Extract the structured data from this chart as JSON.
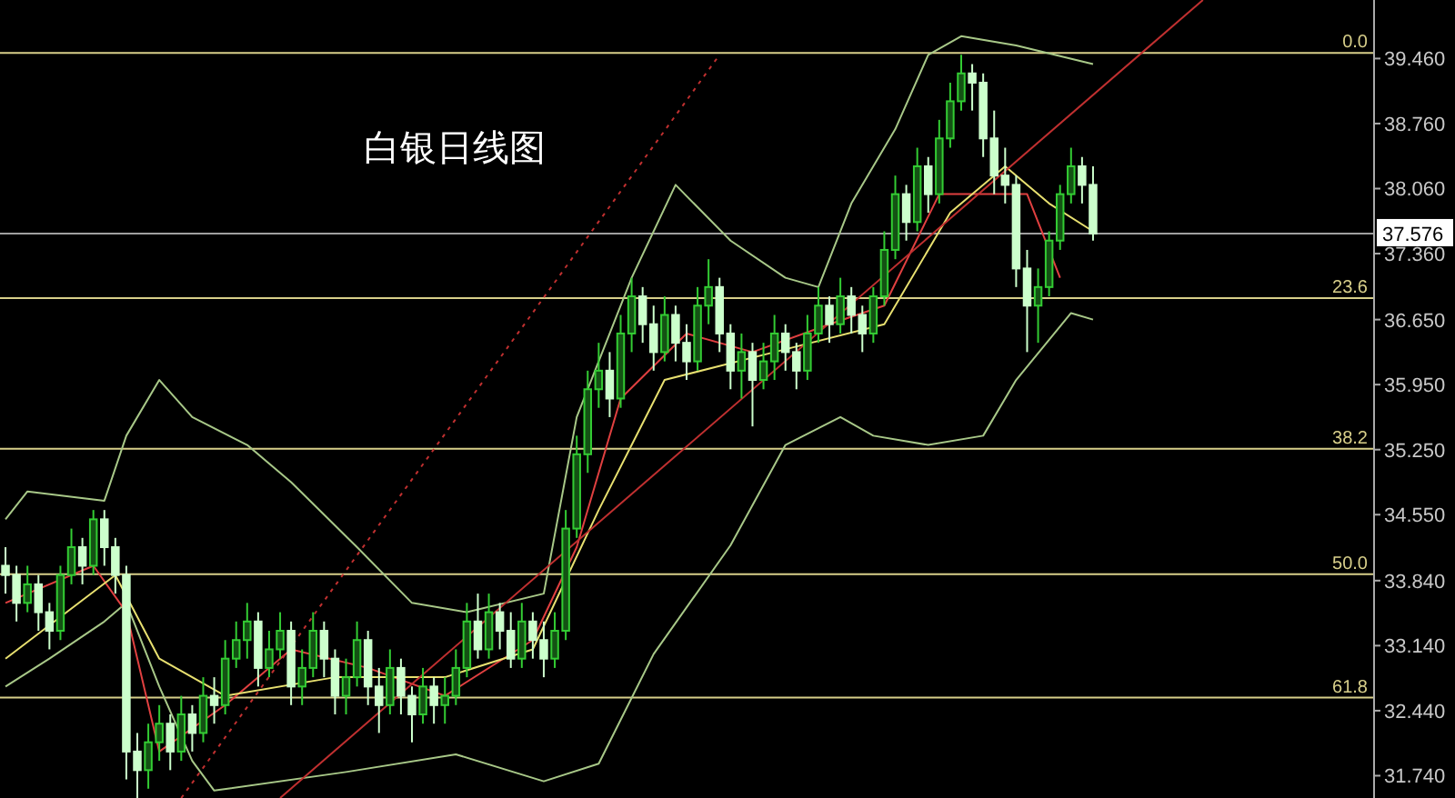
{
  "chart_data": {
    "type": "candlestick",
    "title": "白银日线图",
    "ylim": [
      31.5,
      40.09
    ],
    "tick_labels": "y",
    "grid": false,
    "categories": [
      null,
      null,
      null,
      null,
      null,
      null,
      null,
      null,
      null,
      null,
      null,
      null,
      null,
      null,
      null,
      null,
      null,
      null,
      null,
      null,
      null,
      null,
      null,
      null,
      null,
      null,
      null,
      null,
      null,
      null,
      null,
      null,
      null,
      null,
      null,
      null,
      null,
      null,
      null,
      null,
      null,
      null,
      null,
      null,
      null,
      null,
      null,
      null,
      null,
      null,
      null,
      null,
      null,
      null,
      null,
      null,
      null,
      null,
      null,
      null,
      null,
      null,
      null,
      null,
      null,
      null,
      null,
      null,
      null,
      null,
      null,
      null,
      null,
      null,
      null,
      null,
      null,
      null,
      null,
      null,
      null,
      null,
      null,
      null,
      null,
      null,
      null,
      null,
      null,
      null,
      null,
      null,
      null,
      null,
      null,
      null,
      null,
      null,
      null,
      null,
      null,
      null,
      null,
      null,
      null,
      null,
      null,
      null,
      null,
      null,
      null,
      null,
      null,
      null,
      null,
      null,
      null,
      null,
      null,
      null,
      null,
      null,
      null,
      null,
      null
    ],
    "annotations": [
      {
        "text": "0.0",
        "y": 39.52
      },
      {
        "text": "23.6",
        "y": 36.88
      },
      {
        "text": "38.2",
        "y": 35.26
      },
      {
        "text": "50.0",
        "y": 33.91
      },
      {
        "text": "61.8",
        "y": 32.58
      }
    ],
    "yticks": [
      {
        "value": 39.46,
        "label": "39.460"
      },
      {
        "value": 38.76,
        "label": "38.760"
      },
      {
        "value": 38.06,
        "label": "38.060"
      },
      {
        "value": 37.36,
        "label": "37.360"
      },
      {
        "value": 36.65,
        "label": "36.650"
      },
      {
        "value": 35.95,
        "label": "35.950"
      },
      {
        "value": 35.25,
        "label": "35.250"
      },
      {
        "value": 34.55,
        "label": "34.550"
      },
      {
        "value": 33.84,
        "label": "33.840"
      },
      {
        "value": 33.14,
        "label": "33.140"
      },
      {
        "value": 32.44,
        "label": "32.440"
      },
      {
        "value": 31.74,
        "label": "31.740"
      }
    ],
    "ref_lines": [
      {
        "axis": "y",
        "value": 39.52,
        "color": "#d8cf8a"
      },
      {
        "axis": "y",
        "value": 36.88,
        "color": "#d8cf8a"
      },
      {
        "axis": "y",
        "value": 35.26,
        "color": "#d8cf8a"
      },
      {
        "axis": "y",
        "value": 33.91,
        "color": "#d8cf8a"
      },
      {
        "axis": "y",
        "value": 32.58,
        "color": "#d8cf8a"
      },
      {
        "axis": "y",
        "value": 37.576,
        "label": "37.576",
        "color": "#a0a0a0"
      }
    ],
    "series": [
      {
        "type": "line",
        "color": "#a8c888",
        "values": [
          34.5,
          null,
          34.8,
          null,
          null,
          null,
          null,
          null,
          null,
          34.7,
          null,
          35.4,
          null,
          null,
          36.0,
          null,
          null,
          35.6,
          null,
          null,
          null,
          null,
          35.3,
          null,
          null,
          null,
          34.9,
          null,
          null,
          null,
          null,
          null,
          34.2,
          null,
          null,
          null,
          null,
          33.6,
          null,
          null,
          null,
          null,
          33.5,
          null,
          null,
          null,
          null,
          null,
          null,
          33.7,
          null,
          null,
          35.6,
          null,
          null,
          null,
          null,
          37.1,
          null,
          null,
          null,
          38.1,
          null,
          null,
          null,
          null,
          37.5,
          null,
          null,
          null,
          null,
          37.1,
          null,
          null,
          37.0,
          null,
          null,
          37.9,
          null,
          null,
          null,
          38.7,
          null,
          null,
          39.5,
          null,
          null,
          39.7,
          null,
          null,
          null,
          null,
          39.6,
          null,
          null,
          null,
          null,
          null,
          null,
          39.4,
          null,
          null,
          null,
          null,
          null,
          null,
          null,
          null,
          null,
          null,
          null,
          null,
          null,
          null,
          null,
          null,
          null,
          null,
          null,
          null,
          null,
          null,
          null,
          null,
          null
        ]
      },
      {
        "type": "line",
        "color": "#a8c888",
        "values": [
          32.7,
          null,
          null,
          null,
          33.0,
          null,
          null,
          null,
          null,
          33.4,
          null,
          33.6,
          null,
          null,
          32.7,
          null,
          null,
          31.9,
          null,
          31.58,
          null,
          null,
          null,
          null,
          null,
          null,
          null,
          null,
          null,
          null,
          null,
          31.78,
          null,
          null,
          null,
          null,
          null,
          null,
          null,
          null,
          null,
          31.97,
          null,
          null,
          null,
          null,
          null,
          null,
          null,
          31.68,
          null,
          null,
          null,
          null,
          31.87,
          null,
          null,
          null,
          null,
          33.05,
          null,
          null,
          null,
          null,
          null,
          null,
          34.22,
          null,
          null,
          null,
          null,
          35.3,
          null,
          null,
          null,
          null,
          35.6,
          null,
          null,
          35.4,
          null,
          null,
          null,
          null,
          35.3,
          null,
          null,
          null,
          null,
          35.4,
          null,
          null,
          36.0,
          null,
          null,
          null,
          null,
          36.72,
          null,
          36.65,
          null,
          null,
          null,
          null,
          null,
          null,
          null,
          null,
          null,
          null,
          null,
          null,
          null,
          null,
          null,
          null,
          null,
          null,
          null,
          null,
          null,
          null,
          null,
          null,
          null
        ]
      },
      {
        "type": "line",
        "color": "#e04040",
        "values": [
          33.6,
          null,
          null,
          null,
          null,
          null,
          null,
          null,
          34.0,
          null,
          null,
          33.5,
          null,
          null,
          32.0,
          null,
          null,
          null,
          null,
          null,
          32.5,
          null,
          null,
          null,
          null,
          null,
          33.1,
          null,
          null,
          null,
          null,
          null,
          null,
          32.9,
          null,
          null,
          null,
          null,
          null,
          null,
          32.6,
          null,
          null,
          null,
          null,
          null,
          null,
          null,
          33.2,
          null,
          null,
          null,
          34.2,
          null,
          null,
          null,
          35.8,
          null,
          null,
          null,
          null,
          null,
          36.5,
          null,
          null,
          null,
          null,
          null,
          36.3,
          null,
          null,
          null,
          null,
          null,
          null,
          36.6,
          null,
          null,
          null,
          null,
          36.8,
          null,
          null,
          null,
          null,
          38.0,
          null,
          null,
          null,
          null,
          null,
          null,
          null,
          38.0,
          null,
          null,
          37.1,
          null,
          null,
          null,
          null,
          null,
          null,
          null,
          null,
          null,
          null,
          null,
          null,
          null,
          null,
          null,
          null,
          null,
          null,
          null,
          null,
          null,
          null,
          null,
          null,
          null,
          null,
          null,
          null
        ]
      },
      {
        "type": "line",
        "color": "#e8e070",
        "values": [
          33.0,
          null,
          null,
          null,
          null,
          null,
          null,
          null,
          null,
          null,
          33.9,
          null,
          null,
          null,
          33.0,
          null,
          null,
          null,
          null,
          null,
          32.6,
          null,
          null,
          null,
          null,
          null,
          null,
          null,
          null,
          null,
          32.8,
          null,
          null,
          null,
          null,
          null,
          null,
          null,
          null,
          null,
          32.8,
          null,
          null,
          null,
          null,
          null,
          null,
          null,
          33.1,
          null,
          null,
          null,
          null,
          null,
          34.6,
          null,
          null,
          null,
          null,
          null,
          36.0,
          null,
          null,
          null,
          null,
          null,
          null,
          null,
          null,
          null,
          36.3,
          null,
          null,
          null,
          null,
          null,
          null,
          null,
          null,
          null,
          36.6,
          null,
          null,
          null,
          null,
          null,
          37.8,
          null,
          null,
          null,
          null,
          38.3,
          null,
          null,
          null,
          37.9,
          null,
          null,
          null,
          37.6,
          null,
          null,
          null,
          null,
          null,
          null,
          null,
          null,
          null,
          null,
          null,
          null,
          null,
          null,
          null,
          null,
          null,
          null,
          null,
          null,
          null,
          null,
          null,
          null,
          null
        ]
      },
      {
        "type": "line",
        "color": "#c03030",
        "values": [
          null,
          null,
          null,
          null,
          null,
          null,
          null,
          null,
          null,
          null,
          null,
          null,
          null,
          null,
          null,
          null,
          null,
          null,
          null,
          null,
          null,
          null,
          null,
          null,
          null,
          31.5,
          null,
          null,
          null,
          null,
          null,
          null,
          null,
          null,
          null,
          null,
          null,
          null,
          null,
          null,
          null,
          null,
          null,
          null,
          null,
          null,
          null,
          null,
          null,
          null,
          null,
          null,
          null,
          null,
          null,
          null,
          null,
          null,
          null,
          null,
          null,
          null,
          null,
          null,
          null,
          null,
          null,
          null,
          null,
          null,
          null,
          null,
          null,
          null,
          null,
          null,
          null,
          null,
          null,
          null,
          null,
          null,
          null,
          null,
          null,
          null,
          null,
          null,
          null,
          null,
          null,
          null,
          null,
          null,
          null,
          null,
          null,
          null,
          null,
          null,
          null,
          null,
          null,
          null,
          null,
          null,
          null,
          null,
          null,
          40.09,
          null,
          null,
          null,
          null,
          null,
          null,
          null,
          null,
          null,
          null,
          null,
          null,
          null,
          null,
          null
        ]
      },
      {
        "type": "line",
        "color": "#c03030",
        "line_style": "dotted",
        "values": [
          null,
          null,
          null,
          null,
          null,
          null,
          null,
          null,
          null,
          null,
          null,
          null,
          null,
          null,
          null,
          null,
          31.5,
          null,
          null,
          null,
          null,
          null,
          null,
          null,
          null,
          null,
          null,
          null,
          null,
          null,
          null,
          null,
          null,
          null,
          null,
          null,
          null,
          null,
          null,
          null,
          null,
          null,
          null,
          null,
          null,
          null,
          null,
          null,
          null,
          null,
          null,
          null,
          null,
          null,
          null,
          null,
          null,
          null,
          null,
          null,
          null,
          null,
          null,
          null,
          null,
          39.5,
          null,
          null,
          null,
          null,
          null,
          null,
          null,
          null,
          null,
          null,
          null,
          null,
          null,
          null,
          null,
          null,
          null,
          null,
          null,
          null,
          null,
          null,
          null,
          null,
          null,
          null,
          null,
          null,
          null,
          null,
          null,
          null,
          null,
          null,
          null,
          null,
          null,
          null,
          null,
          null,
          null,
          null,
          null,
          null,
          null,
          null,
          null,
          null,
          null,
          null,
          null,
          null,
          null,
          null,
          null,
          null,
          null,
          null,
          null
        ]
      },
      {
        "colors": [
          "#ccffcc",
          "#ccffcc",
          "#33cc33",
          "#ccffcc",
          "#ccffcc",
          "#33cc33",
          "#33cc33",
          "#ccffcc",
          "#33cc33",
          "#ccffcc",
          "#ccffcc",
          "#ccffcc",
          "#ccffcc",
          "#33cc33",
          "#33cc33",
          "#ccffcc",
          "#33cc33",
          "#ccffcc",
          "#33cc33",
          "#ccffcc",
          "#33cc33",
          "#33cc33",
          "#33cc33",
          "#ccffcc",
          "#33cc33",
          "#33cc33",
          "#ccffcc",
          "#33cc33",
          "#33cc33",
          "#ccffcc",
          "#ccffcc",
          "#33cc33",
          "#33cc33",
          "#ccffcc",
          "#ccffcc",
          "#33cc33",
          "#ccffcc",
          "#ccffcc",
          "#33cc33",
          "#ccffcc",
          "#33cc33",
          "#33cc33",
          "#33cc33",
          "#ccffcc",
          "#33cc33",
          "#ccffcc",
          "#ccffcc",
          "#33cc33",
          "#ccffcc",
          "#ccffcc",
          "#33cc33",
          "#33cc33",
          "#33cc33",
          "#33cc33",
          "#33cc33",
          "#ccffcc",
          "#33cc33",
          "#33cc33",
          "#ccffcc",
          "#ccffcc",
          "#33cc33",
          "#ccffcc",
          "#ccffcc",
          "#33cc33",
          "#33cc33",
          "#ccffcc",
          "#ccffcc",
          "#33cc33",
          "#ccffcc",
          "#33cc33",
          "#33cc33",
          "#ccffcc",
          "#ccffcc",
          "#33cc33",
          "#33cc33",
          "#ccffcc",
          "#33cc33",
          "#ccffcc",
          "#ccffcc",
          "#33cc33",
          "#33cc33",
          "#33cc33",
          "#ccffcc",
          "#33cc33",
          "#ccffcc",
          "#33cc33",
          "#33cc33",
          "#33cc33",
          "#ccffcc",
          "#ccffcc",
          "#ccffcc",
          "#ccffcc",
          "#ccffcc",
          "#ccffcc",
          "#33cc33",
          "#33cc33",
          "#33cc33",
          "#33cc33",
          "#ccffcc",
          "#ccffcc",
          null,
          null,
          null,
          null,
          null,
          null,
          null,
          null,
          null,
          null,
          null,
          null,
          null,
          null,
          null,
          null,
          null,
          null,
          null,
          null,
          null,
          null,
          null,
          null,
          null
        ],
        "ohlc": [
          [
            34.0,
            34.2,
            33.7,
            33.9
          ],
          [
            33.9,
            34.0,
            33.4,
            33.6
          ],
          [
            33.6,
            34.0,
            33.5,
            33.8
          ],
          [
            33.8,
            33.9,
            33.3,
            33.5
          ],
          [
            33.5,
            33.6,
            33.1,
            33.3
          ],
          [
            33.3,
            34.0,
            33.2,
            33.9
          ],
          [
            33.9,
            34.4,
            33.8,
            34.2
          ],
          [
            34.2,
            34.3,
            33.8,
            34.0
          ],
          [
            34.0,
            34.6,
            33.9,
            34.5
          ],
          [
            34.5,
            34.6,
            34.0,
            34.2
          ],
          [
            34.2,
            34.3,
            33.7,
            33.9
          ],
          [
            33.9,
            34.0,
            31.7,
            32.0
          ],
          [
            32.0,
            32.2,
            31.5,
            31.8
          ],
          [
            31.8,
            32.3,
            31.6,
            32.1
          ],
          [
            32.1,
            32.5,
            31.9,
            32.3
          ],
          [
            32.3,
            32.4,
            31.8,
            32.0
          ],
          [
            32.0,
            32.6,
            31.9,
            32.4
          ],
          [
            32.4,
            32.5,
            32.0,
            32.2
          ],
          [
            32.2,
            32.8,
            32.1,
            32.6
          ],
          [
            32.6,
            32.8,
            32.3,
            32.5
          ],
          [
            32.5,
            33.2,
            32.4,
            33.0
          ],
          [
            33.0,
            33.4,
            32.9,
            33.2
          ],
          [
            33.2,
            33.6,
            33.0,
            33.4
          ],
          [
            33.4,
            33.5,
            32.7,
            32.9
          ],
          [
            32.9,
            33.3,
            32.8,
            33.1
          ],
          [
            33.1,
            33.5,
            33.0,
            33.3
          ],
          [
            33.3,
            33.4,
            32.5,
            32.7
          ],
          [
            32.7,
            33.1,
            32.5,
            32.9
          ],
          [
            32.9,
            33.5,
            32.8,
            33.3
          ],
          [
            33.3,
            33.4,
            32.8,
            33.0
          ],
          [
            33.0,
            33.1,
            32.4,
            32.6
          ],
          [
            32.6,
            33.0,
            32.4,
            32.8
          ],
          [
            32.8,
            33.4,
            32.7,
            33.2
          ],
          [
            33.2,
            33.3,
            32.5,
            32.7
          ],
          [
            32.7,
            32.9,
            32.2,
            32.5
          ],
          [
            32.5,
            33.1,
            32.4,
            32.9
          ],
          [
            32.9,
            33.0,
            32.4,
            32.6
          ],
          [
            32.6,
            32.7,
            32.1,
            32.4
          ],
          [
            32.4,
            32.9,
            32.3,
            32.7
          ],
          [
            32.7,
            32.8,
            32.3,
            32.5
          ],
          [
            32.5,
            32.8,
            32.3,
            32.6
          ],
          [
            32.6,
            33.1,
            32.5,
            32.9
          ],
          [
            32.9,
            33.6,
            32.8,
            33.4
          ],
          [
            33.4,
            33.7,
            33.0,
            33.1
          ],
          [
            33.1,
            33.7,
            33.0,
            33.5
          ],
          [
            33.5,
            33.6,
            33.1,
            33.3
          ],
          [
            33.3,
            33.5,
            32.9,
            33.0
          ],
          [
            33.0,
            33.6,
            32.9,
            33.4
          ],
          [
            33.4,
            33.5,
            33.0,
            33.2
          ],
          [
            33.2,
            33.4,
            32.8,
            33.0
          ],
          [
            33.0,
            33.5,
            32.9,
            33.3
          ],
          [
            33.3,
            34.6,
            33.2,
            34.4
          ],
          [
            34.4,
            35.4,
            34.3,
            35.2
          ],
          [
            35.2,
            36.1,
            35.0,
            35.9
          ],
          [
            35.9,
            36.4,
            35.7,
            36.1
          ],
          [
            36.1,
            36.3,
            35.6,
            35.8
          ],
          [
            35.8,
            36.7,
            35.7,
            36.5
          ],
          [
            36.5,
            37.1,
            36.3,
            36.9
          ],
          [
            36.9,
            37.0,
            36.4,
            36.6
          ],
          [
            36.6,
            36.8,
            36.1,
            36.3
          ],
          [
            36.3,
            36.9,
            36.2,
            36.7
          ],
          [
            36.7,
            36.8,
            36.2,
            36.4
          ],
          [
            36.4,
            36.6,
            36.0,
            36.2
          ],
          [
            36.2,
            37.0,
            36.1,
            36.8
          ],
          [
            36.8,
            37.3,
            36.6,
            37.0
          ],
          [
            37.0,
            37.1,
            36.3,
            36.5
          ],
          [
            36.5,
            36.6,
            35.9,
            36.1
          ],
          [
            36.1,
            36.5,
            35.8,
            36.3
          ],
          [
            36.3,
            36.4,
            35.5,
            36.0
          ],
          [
            36.0,
            36.4,
            35.9,
            36.2
          ],
          [
            36.2,
            36.7,
            36.0,
            36.5
          ],
          [
            36.5,
            36.6,
            36.1,
            36.3
          ],
          [
            36.3,
            36.4,
            35.9,
            36.1
          ],
          [
            36.1,
            36.7,
            36.0,
            36.5
          ],
          [
            36.5,
            37.0,
            36.4,
            36.8
          ],
          [
            36.8,
            36.9,
            36.4,
            36.6
          ],
          [
            36.6,
            37.1,
            36.5,
            36.9
          ],
          [
            36.9,
            37.0,
            36.5,
            36.7
          ],
          [
            36.7,
            36.8,
            36.3,
            36.5
          ],
          [
            36.5,
            37.0,
            36.4,
            36.9
          ],
          [
            36.9,
            37.6,
            36.8,
            37.4
          ],
          [
            37.4,
            38.2,
            37.3,
            38.0
          ],
          [
            38.0,
            38.1,
            37.5,
            37.7
          ],
          [
            37.7,
            38.5,
            37.6,
            38.3
          ],
          [
            38.3,
            38.4,
            37.8,
            38.0
          ],
          [
            38.0,
            38.8,
            37.9,
            38.6
          ],
          [
            38.6,
            39.2,
            38.5,
            39.0
          ],
          [
            39.0,
            39.5,
            38.9,
            39.3
          ],
          [
            39.3,
            39.4,
            38.9,
            39.2
          ],
          [
            39.2,
            39.3,
            38.4,
            38.6
          ],
          [
            38.6,
            38.9,
            38.0,
            38.2
          ],
          [
            38.2,
            38.5,
            37.9,
            38.1
          ],
          [
            38.1,
            38.2,
            37.0,
            37.2
          ],
          [
            37.2,
            37.4,
            36.3,
            36.8
          ],
          [
            36.8,
            37.2,
            36.4,
            37.0
          ],
          [
            37.0,
            37.6,
            36.9,
            37.5
          ],
          [
            37.5,
            38.1,
            37.4,
            38.0
          ],
          [
            38.0,
            38.5,
            37.9,
            38.3
          ],
          [
            38.3,
            38.4,
            37.9,
            38.1
          ],
          [
            38.1,
            38.3,
            37.5,
            37.576
          ],
          null,
          null,
          null,
          null,
          null,
          null,
          null,
          null,
          null,
          null,
          null,
          null,
          null,
          null,
          null,
          null,
          null,
          null,
          null,
          null,
          null,
          null,
          null,
          null,
          null
        ]
      }
    ]
  }
}
